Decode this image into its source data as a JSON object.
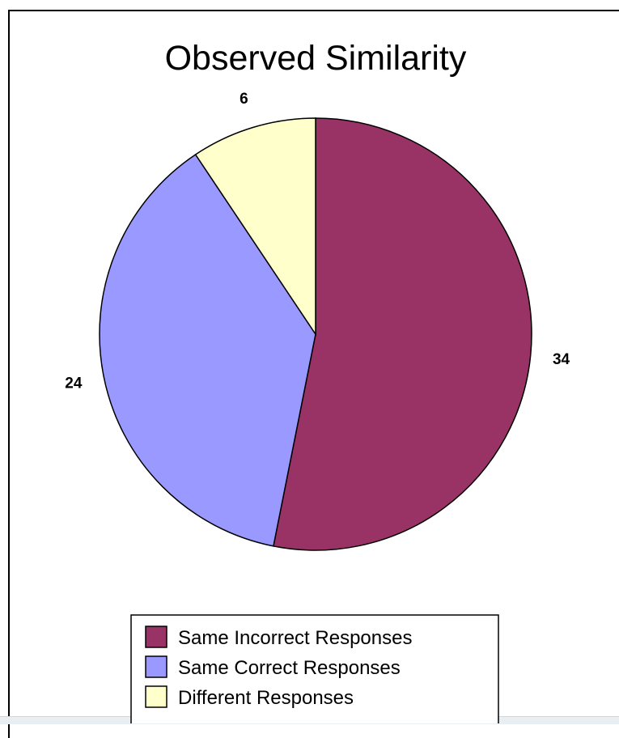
{
  "chart_data": {
    "type": "pie",
    "title": "Observed Similarity",
    "start_angle_deg": 0,
    "direction": "clockwise",
    "slices": [
      {
        "label": "Same Incorrect Responses",
        "value": 34,
        "color": "#993366"
      },
      {
        "label": "Same Correct Responses",
        "value": 24,
        "color": "#9999ff"
      },
      {
        "label": "Different Responses",
        "value": 6,
        "color": "#ffffcc"
      }
    ],
    "data_labels": [
      "34",
      "24",
      "6"
    ],
    "legend_position": "bottom"
  }
}
